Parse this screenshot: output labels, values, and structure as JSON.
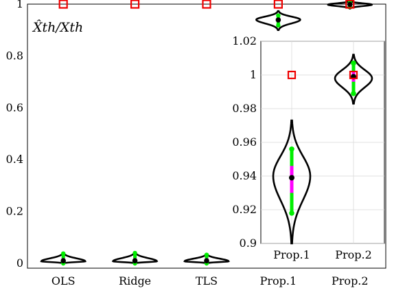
{
  "chart_data": [
    {
      "type": "violin",
      "ylabel": "X̂th/Xth",
      "ylim": [
        0,
        1
      ],
      "yticks": [
        "0",
        "0.2",
        "0.4",
        "0.6",
        "0.8",
        "1"
      ],
      "yticks_values": [
        0,
        0.2,
        0.4,
        0.6,
        0.8,
        1
      ],
      "categories": [
        "OLS",
        "Ridge",
        "TLS",
        "Prop.1",
        "Prop.2"
      ],
      "grid": true,
      "series": [
        {
          "category": "OLS",
          "median": 0.01,
          "q1": 0.005,
          "q3": 0.02,
          "whisker_low": 0.0,
          "whisker_high": 0.038,
          "dist_low": 0.0,
          "dist_high": 0.04,
          "dist_mode": 0.008,
          "reference": 1.0
        },
        {
          "category": "Ridge",
          "median": 0.01,
          "q1": 0.005,
          "q3": 0.02,
          "whisker_low": 0.0,
          "whisker_high": 0.04,
          "dist_low": 0.0,
          "dist_high": 0.042,
          "dist_mode": 0.008,
          "reference": 1.0
        },
        {
          "category": "TLS",
          "median": 0.01,
          "q1": 0.005,
          "q3": 0.02,
          "whisker_low": 0.0,
          "whisker_high": 0.033,
          "dist_low": 0.0,
          "dist_high": 0.036,
          "dist_mode": 0.008,
          "reference": 1.0
        },
        {
          "category": "Prop.1",
          "median": 0.939,
          "q1": 0.93,
          "q3": 0.946,
          "whisker_low": 0.918,
          "whisker_high": 0.956,
          "dist_low": 0.9,
          "dist_high": 0.973,
          "dist_mode": 0.94,
          "reference": 1.0
        },
        {
          "category": "Prop.2",
          "median": 0.999,
          "q1": 0.996,
          "q3": 1.002,
          "whisker_low": 0.989,
          "whisker_high": 1.007,
          "dist_low": 0.983,
          "dist_high": 1.012,
          "dist_mode": 0.998,
          "reference": 1.0
        }
      ]
    },
    {
      "type": "violin",
      "inset": true,
      "ylim": [
        0.9,
        1.02
      ],
      "yticks": [
        "0.9",
        "0.92",
        "0.94",
        "0.96",
        "0.98",
        "1",
        "1.02"
      ],
      "yticks_values": [
        0.9,
        0.92,
        0.94,
        0.96,
        0.98,
        1.0,
        1.02
      ],
      "categories": [
        "Prop.1",
        "Prop.2"
      ],
      "grid": true,
      "series": [
        {
          "category": "Prop.1",
          "median": 0.939,
          "q1": 0.93,
          "q3": 0.946,
          "whisker_low": 0.918,
          "whisker_high": 0.956,
          "dist_low": 0.9,
          "dist_high": 0.973,
          "dist_mode": 0.94,
          "reference": 1.0
        },
        {
          "category": "Prop.2",
          "median": 0.999,
          "q1": 0.996,
          "q3": 1.002,
          "whisker_low": 0.989,
          "whisker_high": 1.007,
          "dist_low": 0.983,
          "dist_high": 1.012,
          "dist_mode": 0.998,
          "reference": 1.0
        }
      ]
    }
  ],
  "colors": {
    "violin": "#000000",
    "whisker": "#00ee00",
    "iqr": "#ff00ff",
    "median": "#000000",
    "reference": "#ee0000",
    "grid": "#d9d9d9"
  }
}
